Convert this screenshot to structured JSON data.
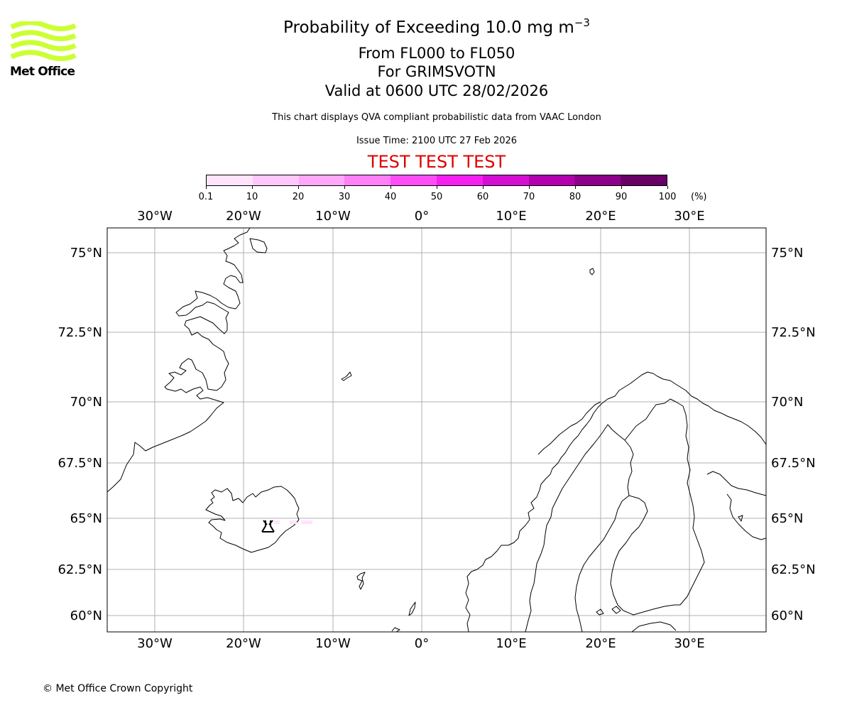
{
  "header": {
    "title_prefix": "Probability of Exceeding 10.0 mg m",
    "title_exponent": "−3",
    "levels": "From FL000 to FL050",
    "volcano": "For GRIMSVOTN",
    "valid": "Valid at 0600 UTC 28/02/2026",
    "description": "This chart displays QVA compliant probabilistic data from VAAC London",
    "issue_time": "Issue Time: 2100 UTC 27 Feb 2026",
    "test_banner": "TEST TEST TEST",
    "test_color": "#dd0000"
  },
  "logo": {
    "text": "Met Office",
    "wave_color": "#ccff33"
  },
  "colorbar": {
    "ticks": [
      "0.1",
      "10",
      "20",
      "30",
      "40",
      "50",
      "60",
      "70",
      "80",
      "90",
      "100"
    ],
    "unit": "(%)",
    "colors": [
      "#ffe3fd",
      "#ffc8fb",
      "#ffa8f9",
      "#ff80f7",
      "#ff4df6",
      "#f520f2",
      "#d40ed2",
      "#b200af",
      "#8c008a",
      "#680065"
    ]
  },
  "map": {
    "lon_labels": [
      "30°W",
      "20°W",
      "10°W",
      "0°",
      "10°E",
      "20°E",
      "30°E"
    ],
    "lat_labels": [
      "75°N",
      "72.5°N",
      "70°N",
      "67.5°N",
      "65°N",
      "62.5°N",
      "60°N"
    ],
    "grid_color": "#b0b0b0",
    "coast_color": "#000000",
    "volcano_marker": "volcano-symbol",
    "plume_color": "#ffe3fd"
  },
  "footer": {
    "copyright": "© Met Office Crown Copyright"
  }
}
